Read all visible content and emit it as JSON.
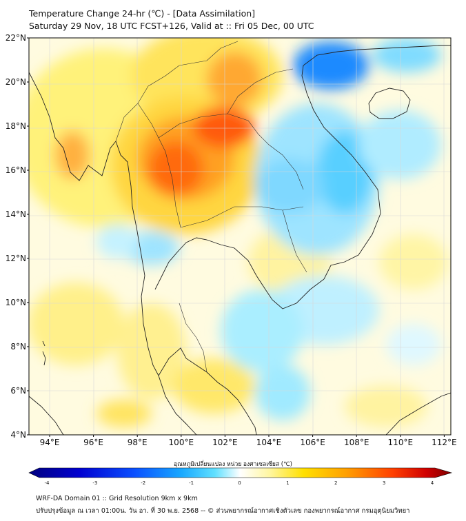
{
  "header": {
    "title_line1": "Temperature Change 24-hr (℃) - [Data Assimilation]",
    "title_line2": "Saturday 29 Nov, 18 UTC FCST+126, Valid at :: Fri 05 Dec, 00 UTC"
  },
  "map": {
    "lat_labels": [
      "22°N",
      "20°N",
      "18°N",
      "16°N",
      "14°N",
      "12°N",
      "10°N",
      "8°N",
      "6°N",
      "4°N"
    ],
    "lon_labels": [
      "94°E",
      "96°E",
      "98°E",
      "100°E",
      "102°E",
      "104°E",
      "106°E",
      "108°E",
      "110°E",
      "112°E"
    ]
  },
  "colorbar": {
    "title": "อุณหภูมิเปลี่ยนแปลง หน่วย องศาเซลเซียส (℃)",
    "ticks": [
      "-4",
      "-3",
      "-2",
      "-1",
      "0",
      "1",
      "2",
      "3",
      "4"
    ],
    "colors": [
      "#00007f",
      "#0000c8",
      "#0a3cff",
      "#1e90ff",
      "#00c8ff",
      "#aaf0ff",
      "#ffffff",
      "#fff5a0",
      "#ffe000",
      "#ffa000",
      "#ff5000",
      "#e00000",
      "#7f0000"
    ]
  },
  "footer": {
    "line1": "WRF-DA Domain 01 :: Grid Resolution 9km x 9km",
    "line2": "ปรับปรุงข้อมูล ณ เวลา 01:00น. วัน อา. ที่ 30 พ.ย. 2568 -- © ส่วนพยากรณ์อากาศเชิงตัวเลข กองพยากรณ์อากาศ กรมอุตุนิยมวิทยา"
  }
}
